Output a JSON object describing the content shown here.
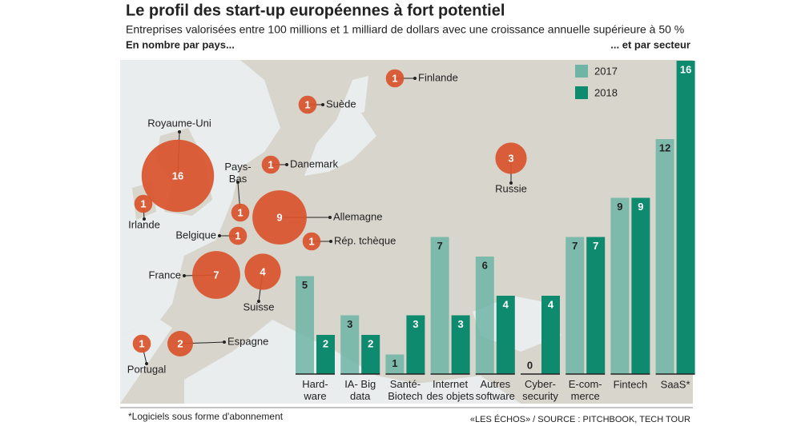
{
  "title": "Le profil des start-up européennes à fort potentiel",
  "subtitle": "Entreprises valorisées entre 100 millions et 1 milliard de dollars avec une croissance annuelle supérieure à 50 %",
  "footnote": "*Logiciels sous forme d'abonnement",
  "source": "«LES ÉCHOS» / SOURCE : PITCHBOOK, TECH TOUR",
  "chart_data": [
    {
      "type": "map-bubble",
      "subtitle": "En nombre par pays...",
      "color": "#d9532b",
      "categories": [
        "Finlande",
        "Suède",
        "Royaume-Uni",
        "Danemark",
        "Pays-\nBas",
        "Irlande",
        "Allemagne",
        "Belgique",
        "Rép. tchèque",
        "France",
        "Suisse",
        "Espagne",
        "Portugal",
        "Russie"
      ],
      "values": [
        1,
        1,
        16,
        1,
        1,
        1,
        9,
        1,
        1,
        7,
        4,
        2,
        1,
        3
      ]
    },
    {
      "type": "bar",
      "subtitle": "... et par secteur",
      "categories": [
        "Hard-\nware",
        "IA- Big\ndata",
        "Santé-\nBiotech",
        "Internet\ndes objets",
        "Autres\nsoftware",
        "Cyber-\nsecurity",
        "E-com-\nmerce",
        "Fintech",
        "SaaS*"
      ],
      "series": [
        {
          "name": "2017",
          "color": "#6fb5a6",
          "values": [
            5,
            3,
            1,
            7,
            6,
            0,
            7,
            9,
            12
          ]
        },
        {
          "name": "2018",
          "color": "#0e8a6f",
          "values": [
            2,
            2,
            3,
            3,
            4,
            4,
            7,
            9,
            16
          ]
        }
      ]
    }
  ]
}
